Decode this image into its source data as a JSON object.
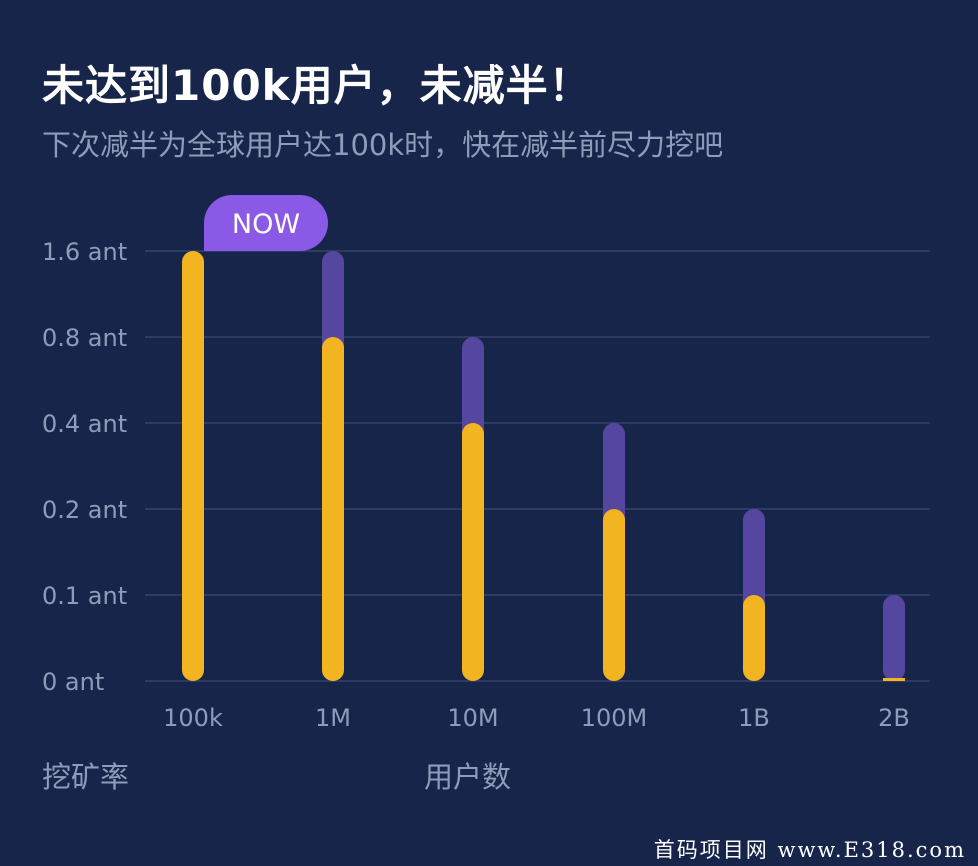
{
  "title": "未达到100k用户，未减半！",
  "subtitle": "下次减半为全球用户达100k时，快在减半前尽力挖吧",
  "now_badge": "NOW",
  "watermark": "首码项目网 www.E318.com",
  "colors": {
    "background": "#17254a",
    "current_rate": "#f2b521",
    "previous_rate": "#5546a0",
    "now_badge": "#8a5ae6",
    "grid": "#35436a",
    "tick_text": "#8f9bb8"
  },
  "chart_data": {
    "type": "bar",
    "xlabel": "用户数",
    "ylabel": "挖矿率",
    "categories": [
      "100k",
      "1M",
      "10M",
      "100M",
      "1B",
      "2B"
    ],
    "y_ticks": [
      "0 ant",
      "0.1 ant",
      "0.2 ant",
      "0.4 ant",
      "0.8 ant",
      "1.6 ant"
    ],
    "y_tick_values": [
      0,
      0.1,
      0.2,
      0.4,
      0.8,
      1.6
    ],
    "y_scale": "log2-style (0, 0.1, 0.2, 0.4, 0.8, 1.6)",
    "grid": true,
    "current_index": 0,
    "series": [
      {
        "values": [
          1.6,
          0.8,
          0.4,
          0.2,
          0.1,
          0
        ]
      },
      {
        "values": [
          1.6,
          1.6,
          0.8,
          0.4,
          0.2,
          0.1
        ]
      }
    ]
  }
}
